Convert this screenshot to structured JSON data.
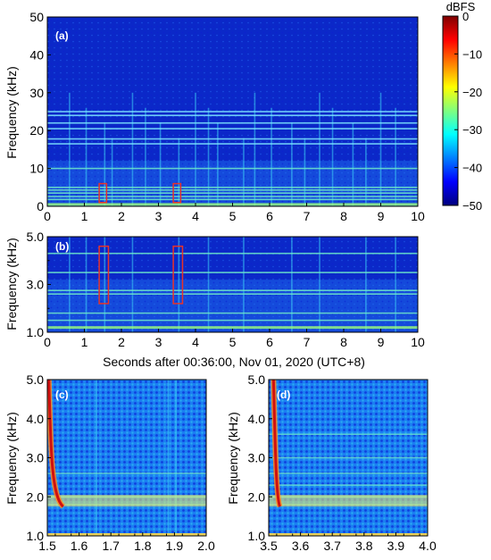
{
  "colorbar": {
    "title": "dBFS",
    "ticks": [
      0,
      -10,
      -20,
      -30,
      -40,
      -50
    ],
    "range": [
      -50,
      0
    ],
    "colors": [
      "#00007f",
      "#0000ff",
      "#007fff",
      "#00ffff",
      "#7fff7f",
      "#ffff00",
      "#ff7f00",
      "#ff0000",
      "#7f0000"
    ]
  },
  "x_label_shared": "Seconds after 00:36:00, Nov 01, 2020 (UTC+8)",
  "highlight_color": "#e8322a",
  "chart_data": [
    {
      "type": "heatmap",
      "panel": "(a)",
      "xlabel": "",
      "ylabel": "Frequency (kHz)",
      "xlim": [
        0,
        10
      ],
      "ylim": [
        0,
        50
      ],
      "xticks": [
        "0",
        "1",
        "2",
        "3",
        "4",
        "5",
        "6",
        "7",
        "8",
        "9",
        "10"
      ],
      "yticks": [
        "0",
        "10",
        "20",
        "30",
        "40",
        "50"
      ],
      "tonal_lines_khz": [
        1.8,
        2.6,
        3.5,
        4.3,
        5.0,
        10.0,
        16.5,
        17.8,
        20.5,
        22.0,
        24.0,
        25.0
      ],
      "transient_times_s": [
        0.6,
        1.05,
        1.55,
        1.75,
        2.3,
        2.65,
        3.05,
        3.55,
        4.0,
        4.35,
        4.6,
        5.3,
        5.6,
        6.05,
        6.6,
        6.95,
        7.35,
        7.7,
        8.25,
        8.6,
        9.0,
        9.4
      ],
      "highlight_boxes": [
        {
          "t0": 1.4,
          "t1": 1.6,
          "f0": 1,
          "f1": 6
        },
        {
          "t0": 3.4,
          "t1": 3.6,
          "f0": 1,
          "f1": 6
        }
      ]
    },
    {
      "type": "heatmap",
      "panel": "(b)",
      "xlabel": "Seconds after 00:36:00, Nov 01, 2020 (UTC+8)",
      "ylabel": "Frequency (kHz)",
      "xlim": [
        0,
        10
      ],
      "ylim": [
        1.0,
        5.0
      ],
      "xticks": [
        "0",
        "1",
        "2",
        "3",
        "4",
        "5",
        "6",
        "7",
        "8",
        "9",
        "10"
      ],
      "yticks": [
        "1.0",
        "3.0",
        "5.0"
      ],
      "tonal_lines_khz": [
        1.5,
        1.8,
        2.6,
        2.75,
        3.5,
        4.3
      ],
      "transient_times_s": [
        0.6,
        1.05,
        1.55,
        2.3,
        3.55,
        4.35,
        5.3,
        6.6,
        7.35,
        8.6,
        9.4
      ],
      "highlight_boxes": [
        {
          "t0": 1.4,
          "t1": 1.65,
          "f0": 2.2,
          "f1": 4.6
        },
        {
          "t0": 3.4,
          "t1": 3.65,
          "f0": 2.2,
          "f1": 4.6
        }
      ]
    },
    {
      "type": "heatmap",
      "panel": "(c)",
      "xlabel": "",
      "ylabel": "Frequency (kHz)",
      "xlim": [
        1.5,
        2.0
      ],
      "ylim": [
        1.0,
        5.0
      ],
      "xticks": [
        "1.5",
        "1.6",
        "1.7",
        "1.8",
        "1.9",
        "2.0"
      ],
      "yticks": [
        "1.0",
        "2.0",
        "3.0",
        "4.0",
        "5.0"
      ],
      "tonal_lines_khz": [
        1.8,
        2.0,
        2.6
      ],
      "transient_times_s": [
        1.655,
        1.88,
        1.905
      ],
      "chirp": {
        "t_start": 1.505,
        "f_start": 5.0,
        "t_end": 1.55,
        "f_end": 1.75
      }
    },
    {
      "type": "heatmap",
      "panel": "(d)",
      "xlabel": "",
      "ylabel": "Frequency (kHz)",
      "xlim": [
        3.5,
        4.0
      ],
      "ylim": [
        1.0,
        5.0
      ],
      "xticks": [
        "3.5",
        "3.6",
        "3.7",
        "3.8",
        "3.9",
        "4.0"
      ],
      "yticks": [
        "1.0",
        "2.0",
        "3.0",
        "4.0",
        "5.0"
      ],
      "tonal_lines_khz": [
        1.8,
        2.0,
        2.3,
        2.6,
        3.0,
        3.6
      ],
      "transient_times_s": [],
      "chirp": {
        "t_start": 3.515,
        "f_start": 5.0,
        "t_end": 3.535,
        "f_end": 1.75
      }
    }
  ]
}
